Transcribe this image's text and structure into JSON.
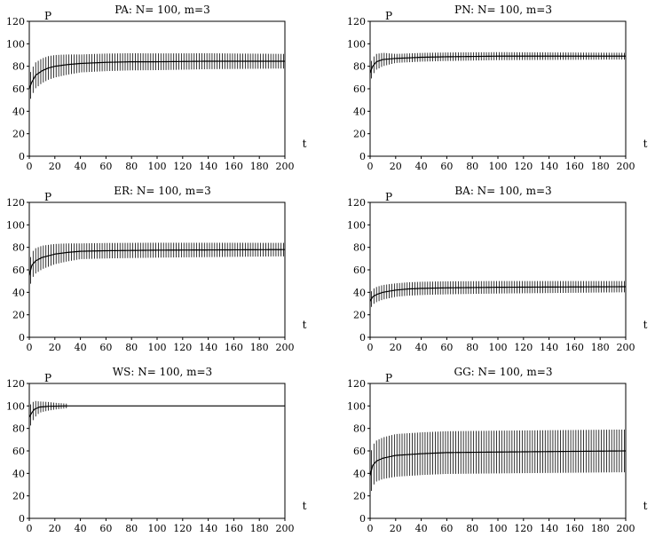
{
  "chart_data": [
    {
      "type": "line",
      "title": "PA:  N= 100, m=3",
      "ylabel": "P",
      "xlabel": "t",
      "xlim": [
        0,
        200
      ],
      "ylim": [
        0,
        120
      ],
      "xticks": [
        0,
        20,
        40,
        60,
        80,
        100,
        120,
        140,
        160,
        180,
        200
      ],
      "yticks": [
        0,
        20,
        40,
        60,
        80,
        100,
        120
      ],
      "grid": false,
      "error_bars": "vertical",
      "points": [
        [
          0,
          60
        ],
        [
          2,
          66
        ],
        [
          5,
          72
        ],
        [
          10,
          76
        ],
        [
          15,
          78.5
        ],
        [
          20,
          80
        ],
        [
          30,
          81.5
        ],
        [
          40,
          82.5
        ],
        [
          60,
          83.5
        ],
        [
          80,
          84
        ],
        [
          100,
          84
        ],
        [
          140,
          84.5
        ],
        [
          200,
          84.5
        ]
      ],
      "error": [
        [
          0,
          12
        ],
        [
          20,
          10
        ],
        [
          40,
          8
        ],
        [
          200,
          6.5
        ]
      ],
      "error_until": 200
    },
    {
      "type": "line",
      "title": "PN:  N= 100, m=3",
      "ylabel": "P",
      "xlabel": "t",
      "xlim": [
        0,
        200
      ],
      "ylim": [
        0,
        120
      ],
      "xticks": [
        0,
        20,
        40,
        60,
        80,
        100,
        120,
        140,
        160,
        180,
        200
      ],
      "yticks": [
        0,
        20,
        40,
        60,
        80,
        100,
        120
      ],
      "grid": false,
      "error_bars": "vertical",
      "points": [
        [
          0,
          74
        ],
        [
          2,
          80
        ],
        [
          5,
          84
        ],
        [
          10,
          86
        ],
        [
          20,
          87
        ],
        [
          40,
          88
        ],
        [
          60,
          88.5
        ],
        [
          100,
          89
        ],
        [
          200,
          89
        ]
      ],
      "error": [
        [
          0,
          8
        ],
        [
          20,
          4
        ],
        [
          200,
          3
        ]
      ],
      "error_until": 200
    },
    {
      "type": "line",
      "title": "ER:  N= 100, m=3",
      "ylabel": "P",
      "xlabel": "t",
      "xlim": [
        0,
        200
      ],
      "ylim": [
        0,
        120
      ],
      "xticks": [
        0,
        20,
        40,
        60,
        80,
        100,
        120,
        140,
        160,
        180,
        200
      ],
      "yticks": [
        0,
        20,
        40,
        60,
        80,
        100,
        120
      ],
      "grid": false,
      "error_bars": "vertical",
      "points": [
        [
          0,
          55
        ],
        [
          2,
          64
        ],
        [
          5,
          68
        ],
        [
          10,
          71
        ],
        [
          20,
          74
        ],
        [
          30,
          75.5
        ],
        [
          40,
          76.5
        ],
        [
          60,
          77
        ],
        [
          100,
          77.5
        ],
        [
          200,
          78
        ]
      ],
      "error": [
        [
          0,
          12
        ],
        [
          20,
          9
        ],
        [
          40,
          7
        ],
        [
          200,
          6
        ]
      ],
      "error_until": 200
    },
    {
      "type": "line",
      "title": "BA:  N= 100, m=3",
      "ylabel": "P",
      "xlabel": "t",
      "xlim": [
        0,
        200
      ],
      "ylim": [
        0,
        120
      ],
      "xticks": [
        0,
        20,
        40,
        60,
        80,
        100,
        120,
        140,
        160,
        180,
        200
      ],
      "yticks": [
        0,
        20,
        40,
        60,
        80,
        100,
        120
      ],
      "grid": false,
      "error_bars": "vertical",
      "points": [
        [
          0,
          32
        ],
        [
          2,
          36
        ],
        [
          5,
          38
        ],
        [
          10,
          40
        ],
        [
          20,
          42
        ],
        [
          30,
          43
        ],
        [
          40,
          43.5
        ],
        [
          60,
          44
        ],
        [
          100,
          44.5
        ],
        [
          200,
          45
        ]
      ],
      "error": [
        [
          0,
          7
        ],
        [
          20,
          6
        ],
        [
          200,
          5
        ]
      ],
      "error_until": 200
    },
    {
      "type": "line",
      "title": "WS:  N= 100, m=3",
      "ylabel": "P",
      "xlabel": "t",
      "xlim": [
        0,
        200
      ],
      "ylim": [
        0,
        120
      ],
      "xticks": [
        0,
        20,
        40,
        60,
        80,
        100,
        120,
        140,
        160,
        180,
        200
      ],
      "yticks": [
        0,
        20,
        40,
        60,
        80,
        100,
        120
      ],
      "grid": false,
      "error_bars": "vertical",
      "points": [
        [
          0,
          90
        ],
        [
          2,
          94
        ],
        [
          4,
          97
        ],
        [
          8,
          99
        ],
        [
          15,
          99.7
        ],
        [
          30,
          100
        ],
        [
          200,
          100
        ]
      ],
      "error": [
        [
          0,
          10
        ],
        [
          8,
          5
        ],
        [
          20,
          3
        ],
        [
          30,
          2
        ]
      ],
      "error_until": 30
    },
    {
      "type": "line",
      "title": "GG:  N= 100, m=3",
      "ylabel": "P",
      "xlabel": "t",
      "xlim": [
        0,
        200
      ],
      "ylim": [
        0,
        120
      ],
      "xticks": [
        0,
        20,
        40,
        60,
        80,
        100,
        120,
        140,
        160,
        180,
        200
      ],
      "yticks": [
        0,
        20,
        40,
        60,
        80,
        100,
        120
      ],
      "grid": false,
      "error_bars": "vertical",
      "points": [
        [
          0,
          38
        ],
        [
          2,
          47
        ],
        [
          5,
          51
        ],
        [
          10,
          53.5
        ],
        [
          20,
          56
        ],
        [
          40,
          57.5
        ],
        [
          60,
          58.5
        ],
        [
          100,
          59
        ],
        [
          200,
          60
        ]
      ],
      "error": [
        [
          0,
          18
        ],
        [
          20,
          19
        ],
        [
          200,
          19
        ]
      ],
      "error_until": 200
    }
  ]
}
